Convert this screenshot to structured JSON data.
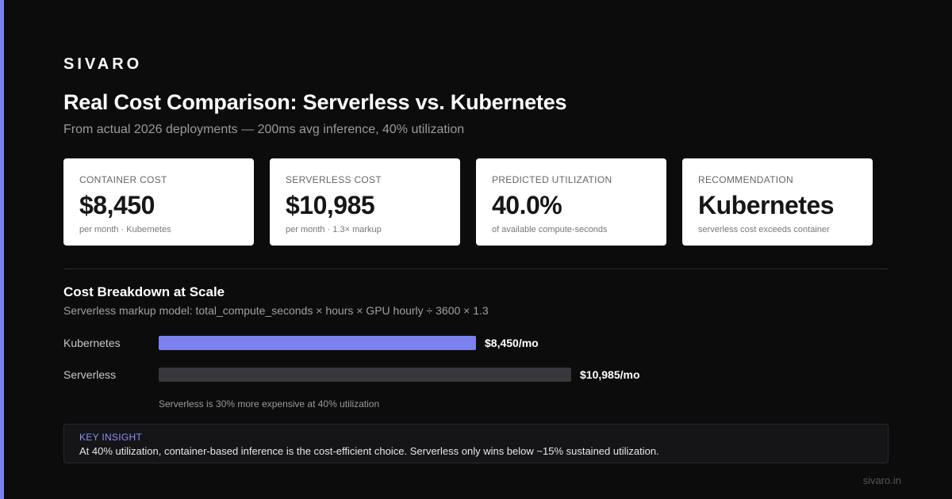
{
  "brand": "SIVARO",
  "title": "Real Cost Comparison: Serverless vs. Kubernetes",
  "subtitle": "From actual 2026 deployments — 200ms avg inference, 40% utilization",
  "cards": [
    {
      "label": "CONTAINER COST",
      "value": "$8,450",
      "note": "per month · Kubernetes"
    },
    {
      "label": "SERVERLESS COST",
      "value": "$10,985",
      "note": "per month · 1.3× markup"
    },
    {
      "label": "PREDICTED UTILIZATION",
      "value": "40.0%",
      "note": "of available compute-seconds"
    },
    {
      "label": "RECOMMENDATION",
      "value": "Kubernetes",
      "note": "serverless cost exceeds container"
    }
  ],
  "breakdown": {
    "title": "Cost Breakdown at Scale",
    "subtitle": "Serverless markup model: total_compute_seconds × hours × GPU hourly ÷ 3600 × 1.3",
    "caption": "Serverless is 30% more expensive at 40% utilization"
  },
  "chart_data": {
    "type": "bar",
    "orientation": "horizontal",
    "categories": [
      "Kubernetes",
      "Serverless"
    ],
    "values": [
      8450,
      10985
    ],
    "value_labels": [
      "$8,450/mo",
      "$10,985/mo"
    ],
    "colors": [
      "#7b82f0",
      "#38383c"
    ]
  },
  "insight": {
    "label": "KEY INSIGHT",
    "text": "At 40% utilization, container-based inference is the cost-efficient choice. Serverless only wins below ~15% sustained utilization."
  },
  "footer": "sivaro.in",
  "colors": {
    "accent": "#7b82f0",
    "background": "#0c0c0c"
  }
}
